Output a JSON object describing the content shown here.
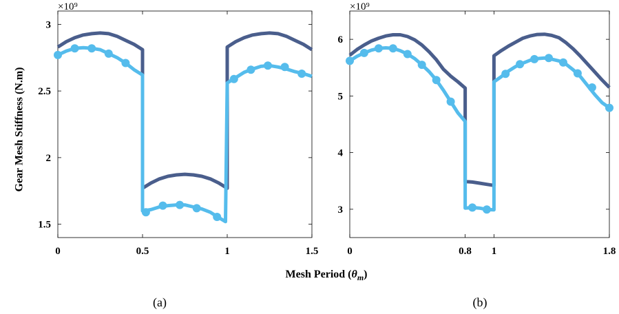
{
  "figure": {
    "ylabel": "Gear Mesh Stiffness (N.m)",
    "xlabel": "Mesh Period (θm)"
  },
  "chart_data": [
    {
      "type": "line",
      "panel_label": "(a)",
      "exponent": "×10⁹",
      "xlim": [
        0,
        1.5
      ],
      "ylim": [
        1.4,
        3.1
      ],
      "x_ticks": [
        0,
        0.5,
        1,
        1.5
      ],
      "x_tick_labels": [
        "0",
        "0.5",
        "1",
        "1.5"
      ],
      "y_ticks": [
        1.5,
        2,
        2.5,
        3
      ],
      "y_tick_labels": [
        "1.5",
        "2",
        "2.5",
        "3"
      ],
      "grid": false,
      "series": [
        {
          "color": "#4a5e8c",
          "markers": false,
          "points": [
            [
              0,
              2.83
            ],
            [
              0.05,
              2.87
            ],
            [
              0.1,
              2.9
            ],
            [
              0.15,
              2.92
            ],
            [
              0.2,
              2.93
            ],
            [
              0.25,
              2.935
            ],
            [
              0.3,
              2.93
            ],
            [
              0.35,
              2.91
            ],
            [
              0.4,
              2.88
            ],
            [
              0.45,
              2.85
            ],
            [
              0.5,
              2.81
            ],
            [
              0.5,
              1.77
            ],
            [
              0.55,
              1.81
            ],
            [
              0.6,
              1.84
            ],
            [
              0.65,
              1.86
            ],
            [
              0.7,
              1.87
            ],
            [
              0.75,
              1.875
            ],
            [
              0.8,
              1.87
            ],
            [
              0.85,
              1.86
            ],
            [
              0.9,
              1.84
            ],
            [
              0.95,
              1.81
            ],
            [
              1.0,
              1.77
            ],
            [
              1.0,
              2.83
            ],
            [
              1.05,
              2.87
            ],
            [
              1.1,
              2.9
            ],
            [
              1.15,
              2.92
            ],
            [
              1.2,
              2.93
            ],
            [
              1.25,
              2.935
            ],
            [
              1.3,
              2.93
            ],
            [
              1.35,
              2.91
            ],
            [
              1.4,
              2.88
            ],
            [
              1.45,
              2.85
            ],
            [
              1.5,
              2.81
            ]
          ]
        },
        {
          "color": "#55bcec",
          "markers": true,
          "points": [
            [
              0,
              2.77
            ],
            [
              0.05,
              2.8
            ],
            [
              0.1,
              2.82
            ],
            [
              0.15,
              2.825
            ],
            [
              0.2,
              2.82
            ],
            [
              0.25,
              2.81
            ],
            [
              0.3,
              2.78
            ],
            [
              0.35,
              2.75
            ],
            [
              0.4,
              2.71
            ],
            [
              0.45,
              2.66
            ],
            [
              0.5,
              2.62
            ],
            [
              0.5,
              1.6
            ],
            [
              0.55,
              1.61
            ],
            [
              0.6,
              1.63
            ],
            [
              0.65,
              1.64
            ],
            [
              0.7,
              1.645
            ],
            [
              0.75,
              1.645
            ],
            [
              0.8,
              1.63
            ],
            [
              0.85,
              1.615
            ],
            [
              0.9,
              1.59
            ],
            [
              0.95,
              1.55
            ],
            [
              0.99,
              1.52
            ],
            [
              1.0,
              2.56
            ],
            [
              1.05,
              2.6
            ],
            [
              1.1,
              2.64
            ],
            [
              1.15,
              2.665
            ],
            [
              1.2,
              2.685
            ],
            [
              1.25,
              2.69
            ],
            [
              1.3,
              2.68
            ],
            [
              1.35,
              2.665
            ],
            [
              1.4,
              2.645
            ],
            [
              1.45,
              2.63
            ],
            [
              1.5,
              2.61
            ]
          ],
          "marker_points": [
            [
              0,
              2.77
            ],
            [
              0.1,
              2.82
            ],
            [
              0.2,
              2.82
            ],
            [
              0.3,
              2.78
            ],
            [
              0.4,
              2.71
            ],
            [
              0.52,
              1.59
            ],
            [
              0.62,
              1.64
            ],
            [
              0.72,
              1.645
            ],
            [
              0.82,
              1.62
            ],
            [
              0.94,
              1.555
            ],
            [
              1.04,
              2.59
            ],
            [
              1.14,
              2.66
            ],
            [
              1.24,
              2.69
            ],
            [
              1.34,
              2.68
            ],
            [
              1.44,
              2.63
            ]
          ]
        }
      ]
    },
    {
      "type": "line",
      "panel_label": "(b)",
      "exponent": "×10⁹",
      "xlim": [
        0,
        1.8
      ],
      "ylim": [
        2.5,
        6.5
      ],
      "x_ticks": [
        0,
        0.8,
        1,
        1.8
      ],
      "x_tick_labels": [
        "0",
        "0.8",
        "1",
        "1.8"
      ],
      "y_ticks": [
        3,
        4,
        5,
        6
      ],
      "y_tick_labels": [
        "3",
        "4",
        "5",
        "6"
      ],
      "grid": false,
      "series": [
        {
          "color": "#4a5e8c",
          "markers": false,
          "points": [
            [
              0,
              5.72
            ],
            [
              0.05,
              5.82
            ],
            [
              0.1,
              5.9
            ],
            [
              0.15,
              5.97
            ],
            [
              0.2,
              6.02
            ],
            [
              0.25,
              6.06
            ],
            [
              0.3,
              6.08
            ],
            [
              0.35,
              6.08
            ],
            [
              0.4,
              6.05
            ],
            [
              0.45,
              5.99
            ],
            [
              0.5,
              5.9
            ],
            [
              0.55,
              5.78
            ],
            [
              0.6,
              5.64
            ],
            [
              0.65,
              5.47
            ],
            [
              0.7,
              5.35
            ],
            [
              0.75,
              5.25
            ],
            [
              0.8,
              5.14
            ],
            [
              0.8,
              3.49
            ],
            [
              0.85,
              3.48
            ],
            [
              0.9,
              3.46
            ],
            [
              0.95,
              3.44
            ],
            [
              1.0,
              3.42
            ],
            [
              1.0,
              5.71
            ],
            [
              1.05,
              5.8
            ],
            [
              1.1,
              5.88
            ],
            [
              1.15,
              5.95
            ],
            [
              1.2,
              6.02
            ],
            [
              1.25,
              6.06
            ],
            [
              1.3,
              6.085
            ],
            [
              1.35,
              6.09
            ],
            [
              1.4,
              6.07
            ],
            [
              1.45,
              6.03
            ],
            [
              1.5,
              5.94
            ],
            [
              1.55,
              5.83
            ],
            [
              1.6,
              5.7
            ],
            [
              1.65,
              5.56
            ],
            [
              1.7,
              5.42
            ],
            [
              1.75,
              5.28
            ],
            [
              1.8,
              5.15
            ]
          ]
        },
        {
          "color": "#55bcec",
          "markers": true,
          "points": [
            [
              0,
              5.62
            ],
            [
              0.05,
              5.7
            ],
            [
              0.1,
              5.76
            ],
            [
              0.15,
              5.81
            ],
            [
              0.2,
              5.84
            ],
            [
              0.25,
              5.85
            ],
            [
              0.3,
              5.84
            ],
            [
              0.35,
              5.8
            ],
            [
              0.4,
              5.74
            ],
            [
              0.45,
              5.66
            ],
            [
              0.5,
              5.55
            ],
            [
              0.55,
              5.43
            ],
            [
              0.6,
              5.28
            ],
            [
              0.65,
              5.1
            ],
            [
              0.7,
              4.9
            ],
            [
              0.75,
              4.7
            ],
            [
              0.8,
              4.55
            ],
            [
              0.8,
              3.02
            ],
            [
              0.85,
              3.03
            ],
            [
              0.9,
              3.02
            ],
            [
              0.95,
              2.995
            ],
            [
              1.0,
              2.99
            ],
            [
              1.0,
              5.25
            ],
            [
              1.05,
              5.34
            ],
            [
              1.1,
              5.44
            ],
            [
              1.15,
              5.52
            ],
            [
              1.2,
              5.58
            ],
            [
              1.25,
              5.63
            ],
            [
              1.3,
              5.66
            ],
            [
              1.35,
              5.67
            ],
            [
              1.4,
              5.65
            ],
            [
              1.45,
              5.62
            ],
            [
              1.5,
              5.56
            ],
            [
              1.55,
              5.46
            ],
            [
              1.6,
              5.34
            ],
            [
              1.65,
              5.18
            ],
            [
              1.7,
              5.02
            ],
            [
              1.75,
              4.88
            ],
            [
              1.8,
              4.79
            ]
          ],
          "marker_points": [
            [
              0,
              5.62
            ],
            [
              0.1,
              5.76
            ],
            [
              0.2,
              5.84
            ],
            [
              0.3,
              5.84
            ],
            [
              0.4,
              5.74
            ],
            [
              0.5,
              5.55
            ],
            [
              0.6,
              5.28
            ],
            [
              0.7,
              4.9
            ],
            [
              0.85,
              3.03
            ],
            [
              0.95,
              2.995
            ],
            [
              1.08,
              5.39
            ],
            [
              1.18,
              5.56
            ],
            [
              1.28,
              5.65
            ],
            [
              1.38,
              5.67
            ],
            [
              1.48,
              5.59
            ],
            [
              1.58,
              5.4
            ],
            [
              1.68,
              5.15
            ],
            [
              1.8,
              4.79
            ]
          ]
        }
      ]
    }
  ]
}
